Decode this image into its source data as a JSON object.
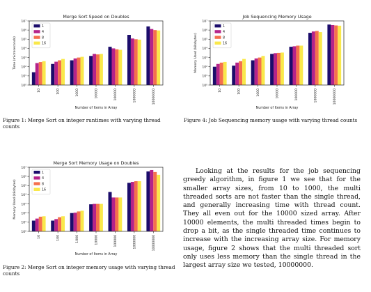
{
  "chart_data": [
    {
      "type": "bar",
      "title": "Merge Sort Speed on Doubles",
      "xlabel": "Number of Items in Array",
      "ylabel": "Time (microseconds)",
      "yscale": "log",
      "ylim": [
        1,
        10000000
      ],
      "yticks": [
        "10^0",
        "10^1",
        "10^2",
        "10^3",
        "10^4",
        "10^5",
        "10^6",
        "10^7"
      ],
      "categories": [
        "10",
        "100",
        "1000",
        "10000",
        "100000",
        "1000000",
        "10000000"
      ],
      "legend_position": "top-left",
      "series": [
        {
          "name": "1",
          "color": "#1b0c6b",
          "values": [
            25,
            200,
            500,
            1500,
            15000,
            300000,
            2500000
          ]
        },
        {
          "name": "4",
          "color": "#b5238a",
          "values": [
            250,
            350,
            800,
            2500,
            10000,
            120000,
            1300000
          ]
        },
        {
          "name": "8",
          "color": "#f5704d",
          "values": [
            320,
            500,
            1000,
            2200,
            8000,
            100000,
            1000000
          ]
        },
        {
          "name": "16",
          "color": "#f9e84a",
          "values": [
            400,
            700,
            1200,
            2500,
            7000,
            90000,
            900000
          ]
        }
      ]
    },
    {
      "type": "bar",
      "title": "Job Sequencing Memory Usage",
      "xlabel": "Number of Items in Array",
      "ylabel": "Memory Used (kilobytes)",
      "yscale": "log",
      "ylim": [
        1,
        10000000
      ],
      "yticks": [
        "10^0",
        "10^1",
        "10^2",
        "10^3",
        "10^4",
        "10^5",
        "10^6",
        "10^7"
      ],
      "categories": [
        "10",
        "100",
        "1000",
        "10000",
        "100000",
        "1000000",
        "10000000"
      ],
      "legend_position": "top-left",
      "series": [
        {
          "name": "1",
          "color": "#1b0c6b",
          "values": [
            100,
            130,
            500,
            2500,
            15000,
            500000,
            4000000
          ]
        },
        {
          "name": "4",
          "color": "#b5238a",
          "values": [
            200,
            280,
            800,
            3000,
            17000,
            700000,
            3500000
          ]
        },
        {
          "name": "8",
          "color": "#f5704d",
          "values": [
            280,
            400,
            1000,
            3200,
            20000,
            800000,
            3200000
          ]
        },
        {
          "name": "16",
          "color": "#f9e84a",
          "values": [
            330,
            700,
            1500,
            3500,
            20000,
            600000,
            3000000
          ]
        }
      ]
    },
    {
      "type": "bar",
      "title": "Merge Sort Memory Usage on Doubles",
      "xlabel": "Number of Items in Array",
      "ylabel": "Memory Used (kilobytes)",
      "yscale": "log",
      "ylim": [
        1,
        10000000
      ],
      "yticks": [
        "10^0",
        "10^1",
        "10^2",
        "10^3",
        "10^4",
        "10^5",
        "10^6",
        "10^7"
      ],
      "categories": [
        "10",
        "100",
        "1000",
        "10000",
        "100000",
        "1000000",
        "10000000"
      ],
      "legend_position": "top-left",
      "series": [
        {
          "name": "1",
          "color": "#1b0c6b",
          "values": [
            15,
            15,
            100,
            900,
            20000,
            200000,
            3500000
          ]
        },
        {
          "name": "4",
          "color": "#b5238a",
          "values": [
            25,
            22,
            110,
            1000,
            5000,
            250000,
            5000000
          ]
        },
        {
          "name": "8",
          "color": "#f5704d",
          "values": [
            40,
            35,
            150,
            1000,
            5000,
            300000,
            3000000
          ]
        },
        {
          "name": "16",
          "color": "#f9e84a",
          "values": [
            45,
            45,
            180,
            1000,
            5000,
            300000,
            1500000
          ]
        }
      ]
    }
  ],
  "captions": {
    "fig1": "Figure 1:  Merge Sort on integer runtimes with varying thread counts",
    "fig4": "Figure 4:  Job Sequencing memory usage with varying thread counts",
    "fig2": "Figure 2: Merge Sort on integer memory usage with varying thread counts"
  },
  "body_text": "Looking at the results for the job sequencing greedy algorithm, in figure 1 we see that for the smaller array sizes, from 10 to 1000, the multi threaded sorts are not faster than the single thread, and generally increasing time with thread count. They all even out for the 10000 sized array. After 10000 elements, the multi threaded times begin to drop a bit, as the single threaded time continues to increase with the increasing array size. For memory usage, figure 2 shows that the multi threaded sort only uses less memory than the single thread in the largest array size we tested, 10000000."
}
